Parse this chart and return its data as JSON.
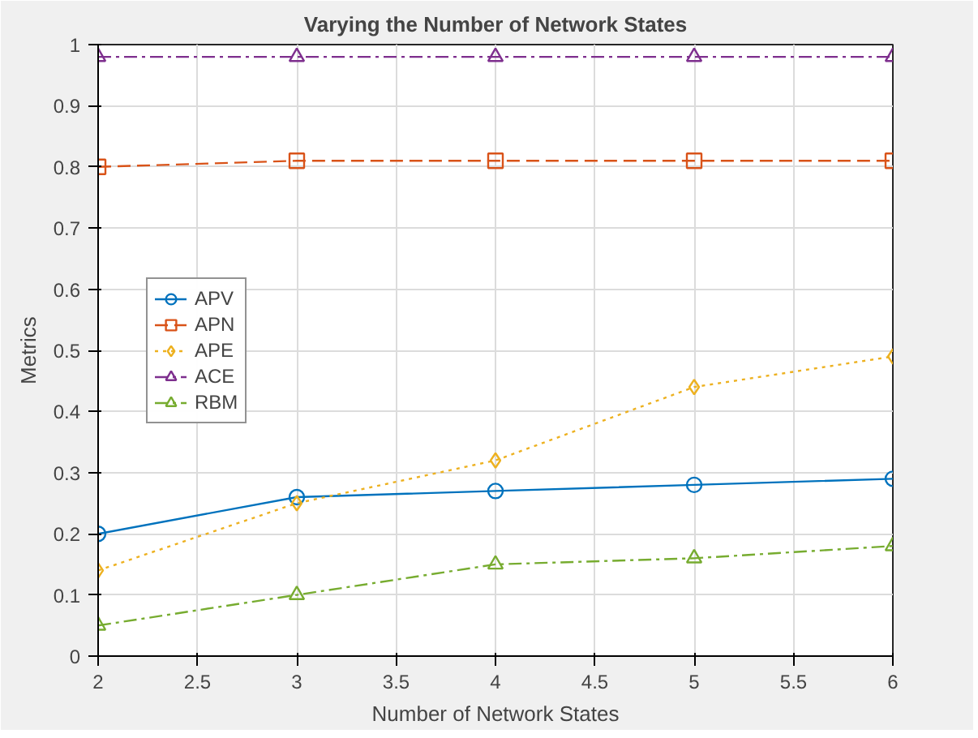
{
  "chart_data": {
    "type": "line",
    "title": "Varying the Number of Network States",
    "xlabel": "Number of Network States",
    "ylabel": "Metrics",
    "x": [
      2,
      3,
      4,
      5,
      6
    ],
    "series": [
      {
        "name": "APV",
        "color": "#0072bd",
        "values": [
          0.2,
          0.26,
          0.27,
          0.28,
          0.29
        ],
        "marker": "circle",
        "line_style": "solid"
      },
      {
        "name": "APN",
        "color": "#d95319",
        "values": [
          0.8,
          0.81,
          0.81,
          0.81,
          0.81
        ],
        "marker": "square",
        "line_style": "dashed"
      },
      {
        "name": "APE",
        "color": "#edb120",
        "values": [
          0.14,
          0.25,
          0.32,
          0.44,
          0.49
        ],
        "marker": "diamond",
        "line_style": "dotted"
      },
      {
        "name": "ACE",
        "color": "#7e2f8e",
        "values": [
          0.98,
          0.98,
          0.98,
          0.98,
          0.98
        ],
        "marker": "triangle",
        "line_style": "dashdot"
      },
      {
        "name": "RBM",
        "color": "#77ac30",
        "values": [
          0.05,
          0.1,
          0.15,
          0.16,
          0.18
        ],
        "marker": "triangle",
        "line_style": "dashdot"
      }
    ],
    "xlim": [
      2,
      6
    ],
    "ylim": [
      0,
      1
    ],
    "xticks": [
      2,
      2.5,
      3,
      3.5,
      4,
      4.5,
      5,
      5.5,
      6
    ],
    "yticks": [
      0,
      0.1,
      0.2,
      0.3,
      0.4,
      0.5,
      0.6,
      0.7,
      0.8,
      0.9,
      1
    ],
    "grid": true,
    "legend": "left"
  }
}
